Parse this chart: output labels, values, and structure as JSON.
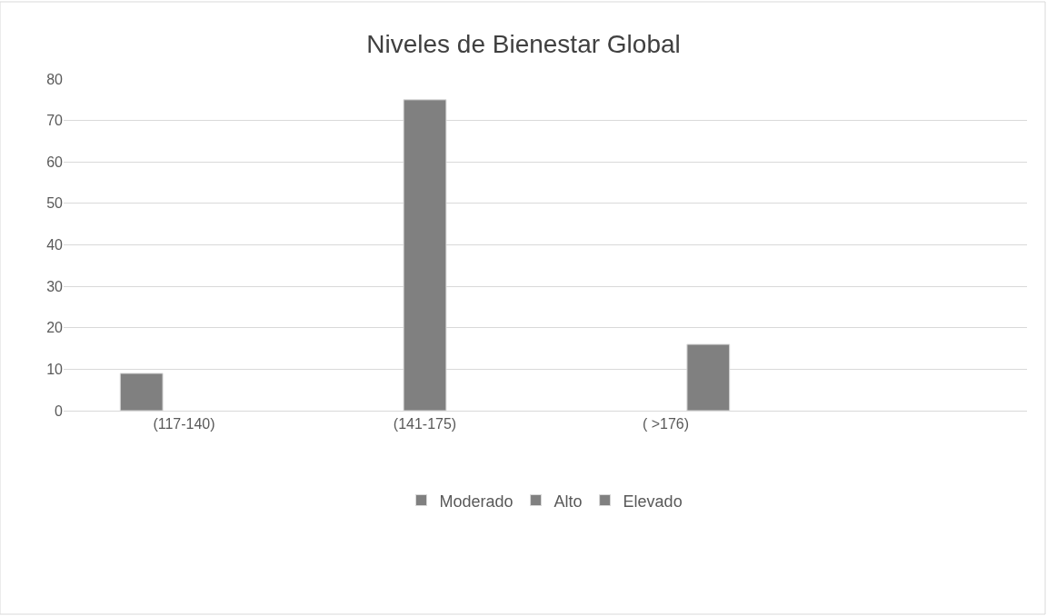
{
  "chart_data": {
    "type": "bar",
    "title": "Niveles de Bienestar Global",
    "categories": [
      "(117-140)",
      "(141-175)",
      "( >176)",
      null
    ],
    "series": [
      {
        "name": "Moderado",
        "color": "#808080",
        "values": [
          9,
          null,
          null,
          null
        ]
      },
      {
        "name": "Alto",
        "color": "#808080",
        "values": [
          null,
          75,
          null,
          null
        ]
      },
      {
        "name": "Elevado",
        "color": "#808080",
        "values": [
          null,
          null,
          16,
          null
        ]
      }
    ],
    "ylim": [
      0,
      80
    ],
    "yticks": [
      0,
      10,
      20,
      30,
      40,
      50,
      60,
      70,
      80
    ],
    "grid": "y",
    "legend": "bottom"
  }
}
